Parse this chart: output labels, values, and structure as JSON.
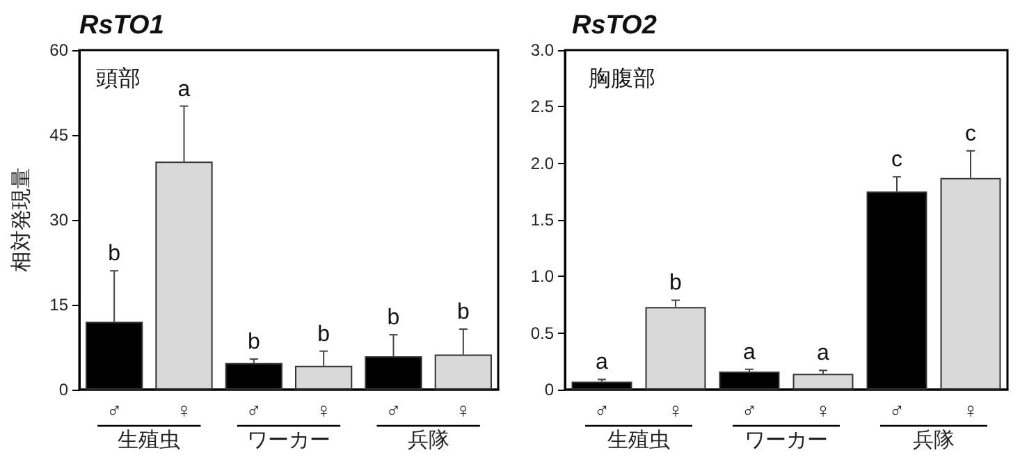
{
  "chart_data": [
    {
      "type": "bar",
      "title": "RsTO1",
      "subtitle": "頭部",
      "ylabel": "相対発現量",
      "categories": [
        "♂",
        "♀",
        "♂",
        "♀",
        "♂",
        "♀"
      ],
      "values": [
        12,
        40.3,
        4.7,
        4.2,
        5.9,
        6.2
      ],
      "colors": [
        "#000000",
        "#d9d9d9",
        "#000000",
        "#d9d9d9",
        "#000000",
        "#d9d9d9"
      ],
      "errors": [
        [
          12,
          21
        ],
        [
          40.3,
          50.1
        ],
        [
          4.7,
          5.4
        ],
        [
          4.2,
          6.8
        ],
        [
          5.9,
          9.7
        ],
        [
          6.2,
          10.7
        ]
      ],
      "value_labels": [
        "b",
        "a",
        "b",
        "b",
        "b",
        "b"
      ],
      "annotations": [
        "生殖虫",
        "ワーカー",
        "兵隊"
      ],
      "ylim": [
        0,
        60
      ],
      "yticks": [
        0,
        15,
        30,
        45,
        60
      ]
    },
    {
      "type": "bar",
      "title": "RsTO2",
      "subtitle": "胸腹部",
      "categories": [
        "♂",
        "♀",
        "♂",
        "♀",
        "♂",
        "♀"
      ],
      "values": [
        0.07,
        0.73,
        0.16,
        0.14,
        1.75,
        1.87
      ],
      "colors": [
        "#000000",
        "#d9d9d9",
        "#000000",
        "#d9d9d9",
        "#000000",
        "#d9d9d9"
      ],
      "errors": [
        [
          0.07,
          0.09
        ],
        [
          0.73,
          0.79
        ],
        [
          0.16,
          0.18
        ],
        [
          0.14,
          0.17
        ],
        [
          1.75,
          1.88
        ],
        [
          1.87,
          2.11
        ]
      ],
      "value_labels": [
        "a",
        "b",
        "a",
        "a",
        "c",
        "c"
      ],
      "annotations": [
        "生殖虫",
        "ワーカー",
        "兵隊"
      ],
      "ylim": [
        0,
        3
      ],
      "yticks": [
        0,
        {
          "value": 0.5,
          "label": "0.5"
        },
        {
          "value": 1,
          "label": "1.0"
        },
        {
          "value": 1.5,
          "label": "1.5"
        },
        {
          "value": 2,
          "label": "2.0"
        },
        {
          "value": 2.5,
          "label": "2.5"
        },
        {
          "value": 3,
          "label": "3.0"
        }
      ]
    }
  ]
}
